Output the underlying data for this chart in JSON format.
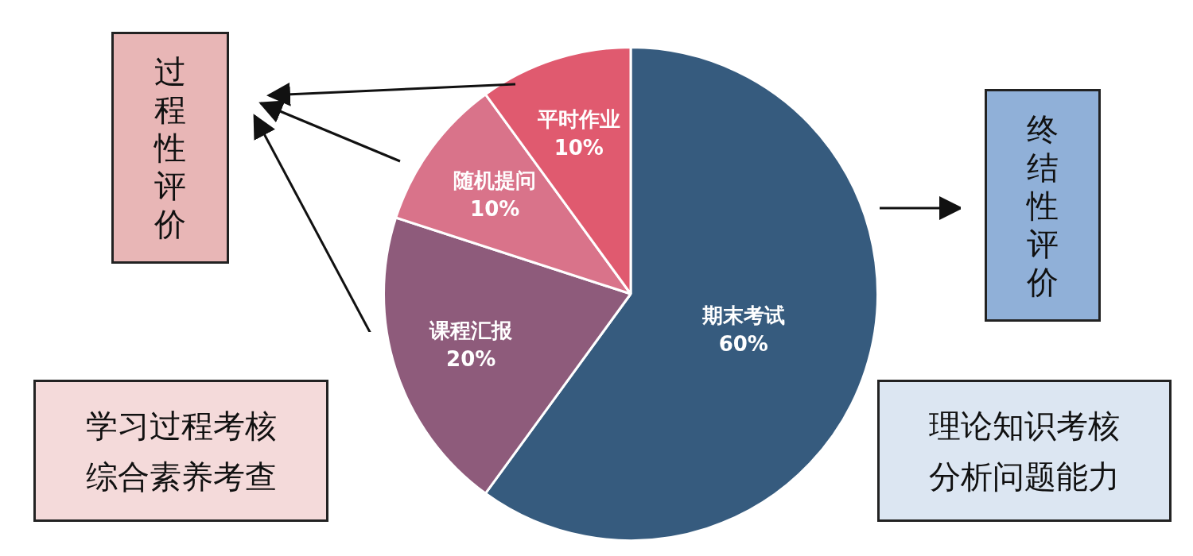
{
  "chart_data": {
    "type": "pie",
    "categories": [
      "期末考试",
      "课程汇报",
      "随机提问",
      "平时作业"
    ],
    "values": [
      60,
      20,
      10,
      10
    ],
    "value_labels": [
      "60%",
      "20%",
      "10%",
      "10%"
    ],
    "colors": [
      "#365b7e",
      "#8e5b7b",
      "#d9738a",
      "#e05a6f"
    ],
    "legend": false,
    "annotations": [
      "过程性评价",
      "终结性评价",
      "学习过程考核综合素养考查",
      "理论知识考核分析问题能力"
    ]
  }
}
